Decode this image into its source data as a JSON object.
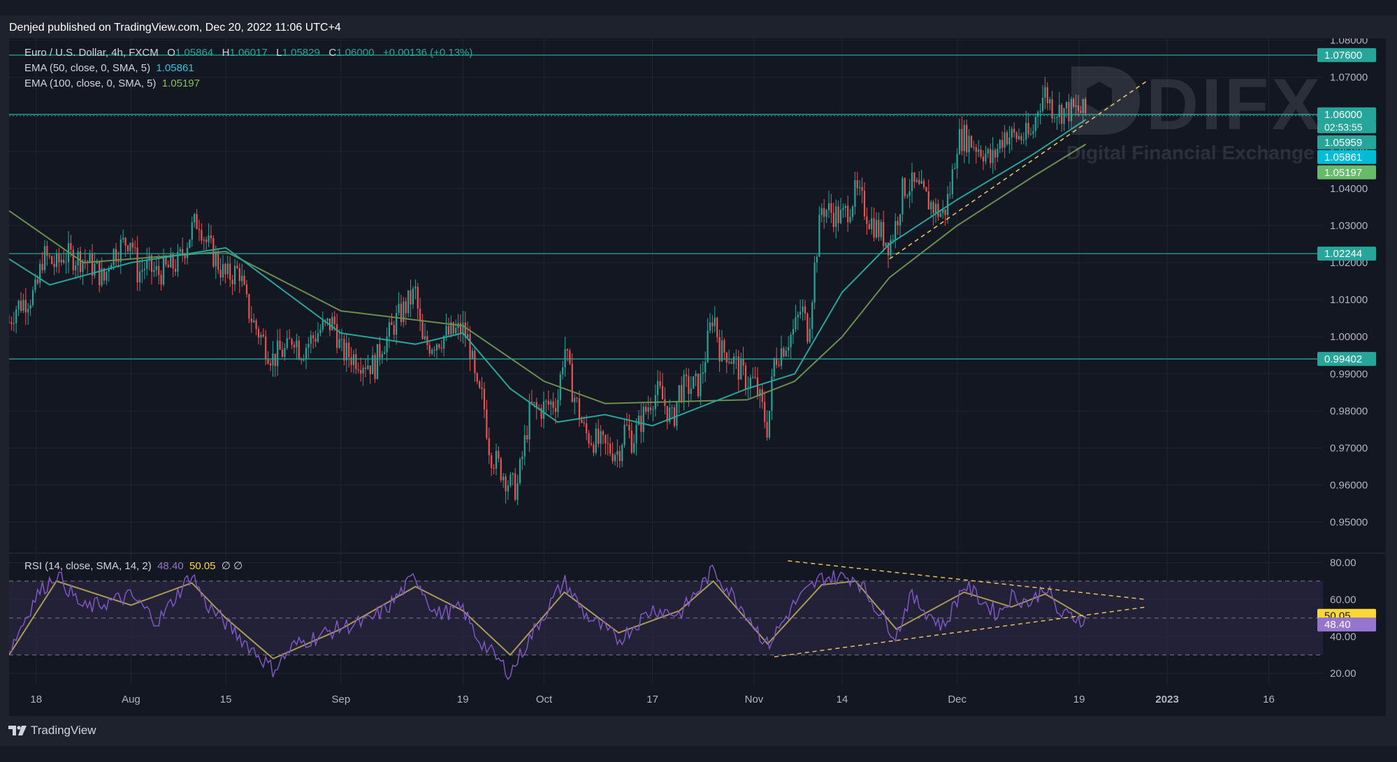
{
  "header": {
    "published": "Denjed published on TradingView.com, Dec 20, 2022 11:06 UTC+4"
  },
  "legend": {
    "symbol": "Euro / U.S. Dollar, 4h, FXCM",
    "o_label": "O",
    "o_value": "1.05864",
    "h_label": "H",
    "h_value": "1.06017",
    "l_label": "L",
    "l_value": "1.05829",
    "c_label": "C",
    "c_value": "1.06000",
    "change": "+0.00136 (+0.13%)",
    "ema50_label": "EMA (50, close, 0, SMA, 5)",
    "ema50_value": "1.05861",
    "ema100_label": "EMA (100, close, 0, SMA, 5)",
    "ema100_value": "1.05197",
    "rsi_label": "RSI (14, close, SMA, 14, 2)",
    "rsi_value": "48.40",
    "rsi_ma_value": "50.05",
    "rsi_extra": "∅ ∅"
  },
  "watermark": {
    "main": "DIFX",
    "sub": "Digital Financial Exchange"
  },
  "footer": {
    "brand": "TradingView"
  },
  "colors": {
    "background": "#131722",
    "grid": "#1f2433",
    "up": "#26a69a",
    "down": "#ef5350",
    "ema50": "#26a69a",
    "ema100": "#6b8f4e",
    "level": "#26a69a",
    "trend": "#e8c15b",
    "rsi": "#7e57c2",
    "rsi_ma": "#a99b54",
    "rsi_band": "#2a2540"
  },
  "chart_data": [
    {
      "type": "candlestick",
      "title": "Euro / U.S. Dollar, 4h, FXCM",
      "currency": "USD",
      "y_ticks": [
        "1.08000",
        "1.07000",
        "1.06000",
        "1.05000",
        "1.04000",
        "1.03000",
        "1.02000",
        "1.01000",
        "1.00000",
        "0.99000",
        "0.98000",
        "0.97000",
        "0.96000",
        "0.95000"
      ],
      "ylim": [
        0.942,
        1.0805
      ],
      "x_ticks": [
        "18",
        "Aug",
        "15",
        "Sep",
        "19",
        "Oct",
        "17",
        "Nov",
        "14",
        "Dec",
        "19",
        "2023",
        "16"
      ],
      "x_tick_dates": [
        "2022-07-18",
        "2022-08-01",
        "2022-08-15",
        "2022-09-01",
        "2022-09-19",
        "2022-10-01",
        "2022-10-17",
        "2022-11-01",
        "2022-11-14",
        "2022-12-01",
        "2022-12-19",
        "2023-01-01",
        "2023-01-16"
      ],
      "price_path": [
        [
          "2022-07-14",
          1.004
        ],
        [
          "2022-07-15",
          1.008
        ],
        [
          "2022-07-18",
          1.012
        ],
        [
          "2022-07-19",
          1.022
        ],
        [
          "2022-07-21",
          1.019
        ],
        [
          "2022-07-22",
          1.022
        ],
        [
          "2022-07-25",
          1.021
        ],
        [
          "2022-07-27",
          1.018
        ],
        [
          "2022-07-28",
          1.015
        ],
        [
          "2022-07-29",
          1.022
        ],
        [
          "2022-08-01",
          1.027
        ],
        [
          "2022-08-02",
          1.017
        ],
        [
          "2022-08-03",
          1.019
        ],
        [
          "2022-08-05",
          1.017
        ],
        [
          "2022-08-08",
          1.02
        ],
        [
          "2022-08-10",
          1.029
        ],
        [
          "2022-08-11",
          1.032
        ],
        [
          "2022-08-12",
          1.026
        ],
        [
          "2022-08-15",
          1.016
        ],
        [
          "2022-08-17",
          1.018
        ],
        [
          "2022-08-18",
          1.009
        ],
        [
          "2022-08-19",
          1.004
        ],
        [
          "2022-08-22",
          0.994
        ],
        [
          "2022-08-23",
          0.996
        ],
        [
          "2022-08-24",
          0.996
        ],
        [
          "2022-08-25",
          1.001
        ],
        [
          "2022-08-26",
          0.996
        ],
        [
          "2022-08-29",
          1.002
        ],
        [
          "2022-08-31",
          1.004
        ],
        [
          "2022-09-01",
          0.996
        ],
        [
          "2022-09-05",
          0.993
        ],
        [
          "2022-09-06",
          0.992
        ],
        [
          "2022-09-07",
          0.998
        ],
        [
          "2022-09-08",
          1.0
        ],
        [
          "2022-09-09",
          1.004
        ],
        [
          "2022-09-12",
          1.012
        ],
        [
          "2022-09-13",
          0.998
        ],
        [
          "2022-09-14",
          0.998
        ],
        [
          "2022-09-16",
          1.0
        ],
        [
          "2022-09-19",
          1.002
        ],
        [
          "2022-09-20",
          0.998
        ],
        [
          "2022-09-21",
          0.985
        ],
        [
          "2022-09-22",
          0.983
        ],
        [
          "2022-09-23",
          0.969
        ],
        [
          "2022-09-26",
          0.96
        ],
        [
          "2022-09-27",
          0.959
        ],
        [
          "2022-09-28",
          0.97
        ],
        [
          "2022-09-29",
          0.981
        ],
        [
          "2022-09-30",
          0.98
        ],
        [
          "2022-10-03",
          0.983
        ],
        [
          "2022-10-04",
          0.998
        ],
        [
          "2022-10-05",
          0.987
        ],
        [
          "2022-10-07",
          0.974
        ],
        [
          "2022-10-10",
          0.97
        ],
        [
          "2022-10-12",
          0.969
        ],
        [
          "2022-10-13",
          0.976
        ],
        [
          "2022-10-14",
          0.972
        ],
        [
          "2022-10-17",
          0.984
        ],
        [
          "2022-10-18",
          0.985
        ],
        [
          "2022-10-20",
          0.977
        ],
        [
          "2022-10-21",
          0.986
        ],
        [
          "2022-10-24",
          0.987
        ],
        [
          "2022-10-25",
          0.997
        ],
        [
          "2022-10-26",
          1.007
        ],
        [
          "2022-10-27",
          0.996
        ],
        [
          "2022-10-28",
          0.996
        ],
        [
          "2022-10-31",
          0.988
        ],
        [
          "2022-11-01",
          0.988
        ],
        [
          "2022-11-02",
          0.982
        ],
        [
          "2022-11-03",
          0.975
        ],
        [
          "2022-11-04",
          0.994
        ],
        [
          "2022-11-07",
          1.002
        ],
        [
          "2022-11-08",
          1.008
        ],
        [
          "2022-11-09",
          1.001
        ],
        [
          "2022-11-10",
          1.02
        ],
        [
          "2022-11-11",
          1.035
        ],
        [
          "2022-11-14",
          1.032
        ],
        [
          "2022-11-15",
          1.035
        ],
        [
          "2022-11-16",
          1.039
        ],
        [
          "2022-11-17",
          1.036
        ],
        [
          "2022-11-18",
          1.032
        ],
        [
          "2022-11-21",
          1.025
        ],
        [
          "2022-11-22",
          1.031
        ],
        [
          "2022-11-23",
          1.04
        ],
        [
          "2022-11-24",
          1.041
        ],
        [
          "2022-11-25",
          1.04
        ],
        [
          "2022-11-28",
          1.034
        ],
        [
          "2022-11-29",
          1.033
        ],
        [
          "2022-11-30",
          1.04
        ],
        [
          "2022-12-01",
          1.053
        ],
        [
          "2022-12-02",
          1.054
        ],
        [
          "2022-12-05",
          1.05
        ],
        [
          "2022-12-06",
          1.047
        ],
        [
          "2022-12-07",
          1.051
        ],
        [
          "2022-12-08",
          1.055
        ],
        [
          "2022-12-09",
          1.054
        ],
        [
          "2022-12-12",
          1.054
        ],
        [
          "2022-12-13",
          1.063
        ],
        [
          "2022-12-14",
          1.066
        ],
        [
          "2022-12-15",
          1.062
        ],
        [
          "2022-12-16",
          1.061
        ],
        [
          "2022-12-19",
          1.061
        ],
        [
          "2022-12-20",
          1.06
        ]
      ],
      "ema50_path": [
        [
          "2022-07-14",
          1.021
        ],
        [
          "2022-07-20",
          1.014
        ],
        [
          "2022-08-01",
          1.02
        ],
        [
          "2022-08-15",
          1.024
        ],
        [
          "2022-09-01",
          1.001
        ],
        [
          "2022-09-12",
          0.998
        ],
        [
          "2022-09-19",
          1.001
        ],
        [
          "2022-09-26",
          0.986
        ],
        [
          "2022-10-03",
          0.977
        ],
        [
          "2022-10-10",
          0.979
        ],
        [
          "2022-10-17",
          0.976
        ],
        [
          "2022-10-31",
          0.986
        ],
        [
          "2022-11-07",
          0.99
        ],
        [
          "2022-11-14",
          1.012
        ],
        [
          "2022-11-21",
          1.025
        ],
        [
          "2022-12-01",
          1.037
        ],
        [
          "2022-12-12",
          1.049
        ],
        [
          "2022-12-20",
          1.05861
        ]
      ],
      "ema100_path": [
        [
          "2022-07-14",
          1.034
        ],
        [
          "2022-07-25",
          1.02
        ],
        [
          "2022-08-15",
          1.023
        ],
        [
          "2022-09-01",
          1.007
        ],
        [
          "2022-09-19",
          1.003
        ],
        [
          "2022-10-01",
          0.988
        ],
        [
          "2022-10-10",
          0.982
        ],
        [
          "2022-10-31",
          0.983
        ],
        [
          "2022-11-07",
          0.988
        ],
        [
          "2022-11-14",
          1.0
        ],
        [
          "2022-11-21",
          1.016
        ],
        [
          "2022-12-01",
          1.03
        ],
        [
          "2022-12-12",
          1.043
        ],
        [
          "2022-12-20",
          1.05197
        ]
      ],
      "horizontal_levels": [
        "1.07600",
        "1.06000",
        "1.02244",
        "0.99402"
      ],
      "price_labels": [
        {
          "text": "1.07600",
          "color": "#26a69a"
        },
        {
          "text": "1.06000",
          "color": "#26a69a"
        },
        {
          "text": "02:53:55",
          "color": "#26a69a"
        },
        {
          "text": "1.05959",
          "color": "#26a69a"
        },
        {
          "text": "1.05861",
          "color": "#00bcd4"
        },
        {
          "text": "1.05197",
          "color": "#66bb6a"
        },
        {
          "text": "1.02244",
          "color": "#26a69a"
        },
        {
          "text": "0.99402",
          "color": "#26a69a"
        }
      ],
      "trend_line": [
        [
          "2022-11-21",
          1.021
        ],
        [
          "2022-12-29",
          1.069
        ]
      ]
    },
    {
      "type": "line",
      "title": "RSI (14, close, SMA, 14, 2)",
      "y_ticks": [
        "80.00",
        "60.00",
        "40.00",
        "20.00"
      ],
      "ylim": [
        14,
        84
      ],
      "band": [
        30,
        70
      ],
      "mid": 50,
      "rsi_path": [
        [
          "2022-07-14",
          32
        ],
        [
          "2022-07-18",
          62
        ],
        [
          "2022-07-21",
          74
        ],
        [
          "2022-07-25",
          55
        ],
        [
          "2022-08-01",
          62
        ],
        [
          "2022-08-05",
          48
        ],
        [
          "2022-08-10",
          74
        ],
        [
          "2022-08-12",
          58
        ],
        [
          "2022-08-17",
          40
        ],
        [
          "2022-08-22",
          22
        ],
        [
          "2022-08-25",
          35
        ],
        [
          "2022-09-01",
          45
        ],
        [
          "2022-09-05",
          48
        ],
        [
          "2022-09-08",
          56
        ],
        [
          "2022-09-12",
          73
        ],
        [
          "2022-09-15",
          52
        ],
        [
          "2022-09-19",
          55
        ],
        [
          "2022-09-21",
          40
        ],
        [
          "2022-09-26",
          20
        ],
        [
          "2022-09-29",
          40
        ],
        [
          "2022-10-04",
          70
        ],
        [
          "2022-10-07",
          52
        ],
        [
          "2022-10-12",
          38
        ],
        [
          "2022-10-17",
          55
        ],
        [
          "2022-10-21",
          52
        ],
        [
          "2022-10-26",
          76
        ],
        [
          "2022-10-31",
          52
        ],
        [
          "2022-11-03",
          35
        ],
        [
          "2022-11-07",
          58
        ],
        [
          "2022-11-11",
          72
        ],
        [
          "2022-11-16",
          72
        ],
        [
          "2022-11-22",
          40
        ],
        [
          "2022-11-24",
          62
        ],
        [
          "2022-11-29",
          45
        ],
        [
          "2022-12-02",
          68
        ],
        [
          "2022-12-07",
          52
        ],
        [
          "2022-12-09",
          62
        ],
        [
          "2022-12-12",
          58
        ],
        [
          "2022-12-14",
          68
        ],
        [
          "2022-12-16",
          52
        ],
        [
          "2022-12-19",
          50
        ],
        [
          "2022-12-20",
          48.4
        ]
      ],
      "rsi_ma_path": [
        [
          "2022-07-14",
          30
        ],
        [
          "2022-07-21",
          70
        ],
        [
          "2022-08-01",
          57
        ],
        [
          "2022-08-10",
          69
        ],
        [
          "2022-08-15",
          50
        ],
        [
          "2022-08-22",
          28
        ],
        [
          "2022-09-01",
          44
        ],
        [
          "2022-09-12",
          67
        ],
        [
          "2022-09-19",
          54
        ],
        [
          "2022-09-26",
          30
        ],
        [
          "2022-10-04",
          64
        ],
        [
          "2022-10-12",
          42
        ],
        [
          "2022-10-21",
          54
        ],
        [
          "2022-10-26",
          70
        ],
        [
          "2022-11-03",
          36
        ],
        [
          "2022-11-11",
          68
        ],
        [
          "2022-11-16",
          70
        ],
        [
          "2022-11-22",
          44
        ],
        [
          "2022-12-02",
          64
        ],
        [
          "2022-12-09",
          56
        ],
        [
          "2022-12-14",
          63
        ],
        [
          "2022-12-20",
          50.05
        ]
      ],
      "price_labels": [
        {
          "text": "50.05",
          "color": "#fdd835"
        },
        {
          "text": "48.40",
          "color": "#9575cd"
        }
      ],
      "triangle_upper": [
        [
          "2022-11-06",
          81
        ],
        [
          "2022-12-29",
          60
        ]
      ],
      "triangle_lower": [
        [
          "2022-11-04",
          29
        ],
        [
          "2022-12-29",
          56
        ]
      ]
    }
  ]
}
